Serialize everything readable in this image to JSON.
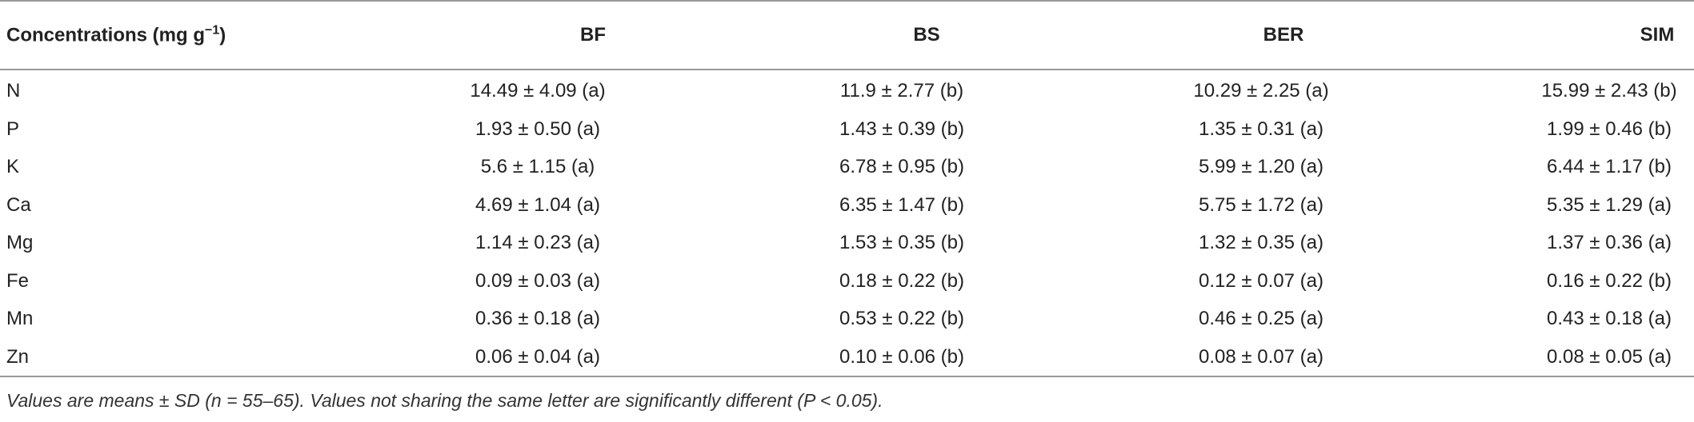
{
  "table": {
    "header": [
      "Concentrations (mg g",
      "BF",
      "BS",
      "BER",
      "SIM"
    ],
    "header_sup": "−1",
    "header_close": ")",
    "rows": [
      [
        "N",
        "14.49 ± 4.09 (a)",
        "11.9 ± 2.77 (b)",
        "10.29 ± 2.25 (a)",
        "15.99 ± 2.43 (b)"
      ],
      [
        "P",
        "1.93 ± 0.50 (a)",
        "1.43 ± 0.39 (b)",
        "1.35 ± 0.31 (a)",
        "1.99 ± 0.46 (b)"
      ],
      [
        "K",
        "5.6 ± 1.15 (a)",
        "6.78 ± 0.95 (b)",
        "5.99 ± 1.20 (a)",
        "6.44 ± 1.17 (b)"
      ],
      [
        "Ca",
        "4.69 ± 1.04 (a)",
        "6.35 ± 1.47 (b)",
        "5.75 ± 1.72 (a)",
        "5.35 ± 1.29 (a)"
      ],
      [
        "Mg",
        "1.14 ± 0.23 (a)",
        "1.53 ± 0.35 (b)",
        "1.32 ± 0.35 (a)",
        "1.37 ± 0.36 (a)"
      ],
      [
        "Fe",
        "0.09 ± 0.03 (a)",
        "0.18 ± 0.22 (b)",
        "0.12 ± 0.07 (a)",
        "0.16 ± 0.22 (b)"
      ],
      [
        "Mn",
        "0.36 ± 0.18 (a)",
        "0.53 ± 0.22 (b)",
        "0.46 ± 0.25 (a)",
        "0.43 ± 0.18 (a)"
      ],
      [
        "Zn",
        "0.06 ± 0.04 (a)",
        "0.10 ± 0.06 (b)",
        "0.08 ± 0.07 (a)",
        "0.08 ± 0.05 (a)"
      ]
    ]
  },
  "footnote": "Values are means ± SD (n = 55–65). Values not sharing the same letter are significantly different (P < 0.05)."
}
